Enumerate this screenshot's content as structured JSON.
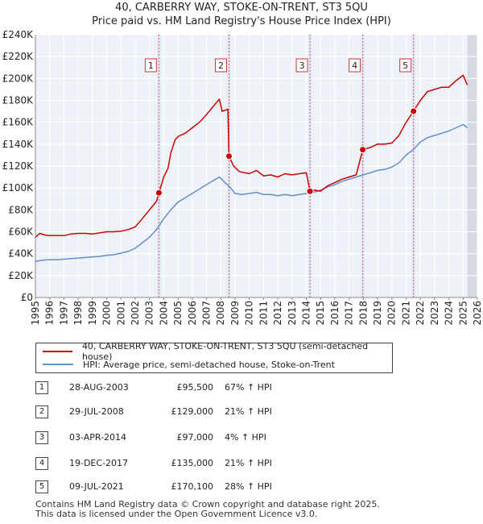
{
  "title_line1": "40, CARBERRY WAY, STOKE-ON-TRENT, ST3 5QU",
  "title_line2": "Price paid vs. HM Land Registry's House Price Index (HPI)",
  "chart_data": {
    "type": "line",
    "x_range": [
      1995,
      2026
    ],
    "ylim": [
      0,
      240000
    ],
    "y_ticks": [
      0,
      20000,
      40000,
      60000,
      80000,
      100000,
      120000,
      140000,
      160000,
      180000,
      200000,
      220000,
      240000
    ],
    "y_tick_labels": [
      "£0",
      "£20K",
      "£40K",
      "£60K",
      "£80K",
      "£100K",
      "£120K",
      "£140K",
      "£160K",
      "£180K",
      "£200K",
      "£220K",
      "£240K"
    ],
    "x_ticks": [
      1995,
      1996,
      1997,
      1998,
      1999,
      2000,
      2001,
      2002,
      2003,
      2004,
      2005,
      2006,
      2007,
      2008,
      2009,
      2010,
      2011,
      2012,
      2013,
      2014,
      2015,
      2016,
      2017,
      2018,
      2019,
      2020,
      2021,
      2022,
      2023,
      2024,
      2025,
      2026
    ],
    "shaded_end_from": 2025.3,
    "series": [
      {
        "name": "40, CARBERRY WAY, STOKE-ON-TRENT, ST3 5QU (semi-detached house)",
        "color": "#cc0000",
        "points": [
          [
            1995.0,
            55000
          ],
          [
            1995.3,
            58500
          ],
          [
            1995.7,
            57000
          ],
          [
            1996.0,
            56500
          ],
          [
            1996.5,
            56500
          ],
          [
            1997.0,
            56500
          ],
          [
            1997.5,
            58000
          ],
          [
            1998.0,
            58500
          ],
          [
            1998.5,
            58500
          ],
          [
            1999.0,
            58000
          ],
          [
            1999.5,
            59000
          ],
          [
            2000.0,
            60000
          ],
          [
            2000.5,
            60000
          ],
          [
            2001.0,
            60500
          ],
          [
            2001.5,
            62000
          ],
          [
            2002.0,
            64500
          ],
          [
            2002.5,
            72000
          ],
          [
            2003.0,
            80000
          ],
          [
            2003.5,
            88000
          ],
          [
            2003.66,
            95500
          ],
          [
            2004.0,
            110000
          ],
          [
            2004.3,
            118000
          ],
          [
            2004.5,
            132000
          ],
          [
            2004.8,
            144000
          ],
          [
            2005.0,
            147000
          ],
          [
            2005.5,
            150000
          ],
          [
            2006.0,
            155000
          ],
          [
            2006.5,
            160000
          ],
          [
            2007.0,
            167000
          ],
          [
            2007.5,
            175000
          ],
          [
            2007.9,
            181000
          ],
          [
            2008.1,
            170000
          ],
          [
            2008.5,
            172000
          ],
          [
            2008.58,
            129000
          ],
          [
            2008.9,
            120000
          ],
          [
            2009.3,
            115000
          ],
          [
            2010.0,
            113000
          ],
          [
            2010.5,
            116000
          ],
          [
            2011.0,
            111000
          ],
          [
            2011.5,
            112000
          ],
          [
            2012.0,
            110000
          ],
          [
            2012.5,
            113000
          ],
          [
            2013.0,
            112000
          ],
          [
            2013.5,
            113000
          ],
          [
            2014.0,
            114000
          ],
          [
            2014.26,
            97000
          ],
          [
            2014.6,
            98000
          ],
          [
            2015.0,
            97000
          ],
          [
            2015.5,
            102000
          ],
          [
            2016.0,
            105000
          ],
          [
            2016.5,
            108000
          ],
          [
            2017.0,
            110000
          ],
          [
            2017.5,
            112000
          ],
          [
            2017.96,
            135000
          ],
          [
            2018.5,
            137000
          ],
          [
            2019.0,
            140000
          ],
          [
            2019.5,
            140000
          ],
          [
            2020.0,
            141000
          ],
          [
            2020.5,
            148000
          ],
          [
            2021.0,
            160000
          ],
          [
            2021.52,
            170100
          ],
          [
            2022.0,
            180000
          ],
          [
            2022.5,
            188000
          ],
          [
            2023.0,
            190000
          ],
          [
            2023.5,
            192000
          ],
          [
            2024.0,
            192000
          ],
          [
            2024.5,
            198000
          ],
          [
            2025.0,
            203000
          ],
          [
            2025.3,
            194000
          ]
        ]
      },
      {
        "name": "HPI: Average price, semi-detached house, Stoke-on-Trent",
        "color": "#6090c8",
        "points": [
          [
            1995.0,
            33000
          ],
          [
            1995.5,
            34000
          ],
          [
            1996.0,
            34500
          ],
          [
            1996.5,
            34500
          ],
          [
            1997.0,
            35000
          ],
          [
            1997.5,
            35500
          ],
          [
            1998.0,
            36000
          ],
          [
            1998.5,
            36500
          ],
          [
            1999.0,
            37000
          ],
          [
            1999.5,
            37500
          ],
          [
            2000.0,
            38500
          ],
          [
            2000.5,
            39000
          ],
          [
            2001.0,
            40500
          ],
          [
            2001.5,
            42000
          ],
          [
            2002.0,
            45000
          ],
          [
            2002.5,
            50000
          ],
          [
            2003.0,
            55000
          ],
          [
            2003.5,
            62000
          ],
          [
            2004.0,
            72000
          ],
          [
            2004.5,
            80000
          ],
          [
            2005.0,
            87000
          ],
          [
            2005.5,
            91000
          ],
          [
            2006.0,
            95000
          ],
          [
            2006.5,
            99000
          ],
          [
            2007.0,
            103000
          ],
          [
            2007.5,
            107000
          ],
          [
            2007.9,
            110000
          ],
          [
            2008.3,
            105000
          ],
          [
            2008.7,
            100000
          ],
          [
            2009.0,
            95000
          ],
          [
            2009.5,
            94000
          ],
          [
            2010.0,
            95000
          ],
          [
            2010.5,
            96000
          ],
          [
            2011.0,
            94000
          ],
          [
            2011.5,
            94000
          ],
          [
            2012.0,
            93000
          ],
          [
            2012.5,
            94000
          ],
          [
            2013.0,
            93000
          ],
          [
            2013.5,
            94000
          ],
          [
            2014.0,
            95000
          ],
          [
            2014.5,
            96000
          ],
          [
            2015.0,
            98000
          ],
          [
            2015.5,
            101000
          ],
          [
            2016.0,
            103000
          ],
          [
            2016.5,
            106000
          ],
          [
            2017.0,
            108000
          ],
          [
            2017.5,
            110000
          ],
          [
            2018.0,
            112000
          ],
          [
            2018.5,
            114000
          ],
          [
            2019.0,
            116000
          ],
          [
            2019.5,
            117000
          ],
          [
            2020.0,
            119000
          ],
          [
            2020.5,
            123000
          ],
          [
            2021.0,
            130000
          ],
          [
            2021.5,
            135000
          ],
          [
            2022.0,
            142000
          ],
          [
            2022.5,
            146000
          ],
          [
            2023.0,
            148000
          ],
          [
            2023.5,
            150000
          ],
          [
            2024.0,
            152000
          ],
          [
            2024.5,
            155000
          ],
          [
            2025.0,
            158000
          ],
          [
            2025.3,
            155000
          ]
        ]
      }
    ],
    "sales": [
      {
        "num": "1",
        "x": 2003.66,
        "price": 95500
      },
      {
        "num": "2",
        "x": 2008.58,
        "price": 129000
      },
      {
        "num": "3",
        "x": 2014.26,
        "price": 97000
      },
      {
        "num": "4",
        "x": 2017.96,
        "price": 135000
      },
      {
        "num": "5",
        "x": 2021.52,
        "price": 170100
      }
    ]
  },
  "legend": {
    "red_label": "40, CARBERRY WAY, STOKE-ON-TRENT, ST3 5QU (semi-detached house)",
    "blue_label": "HPI: Average price, semi-detached house, Stoke-on-Trent",
    "red_color": "#cc0000",
    "blue_color": "#6090c8"
  },
  "sales_table": [
    {
      "num": "1",
      "date": "28-AUG-2003",
      "price": "£95,500",
      "hpi": "67% ↑ HPI"
    },
    {
      "num": "2",
      "date": "29-JUL-2008",
      "price": "£129,000",
      "hpi": "21% ↑ HPI"
    },
    {
      "num": "3",
      "date": "03-APR-2014",
      "price": "£97,000",
      "hpi": "4% ↑ HPI"
    },
    {
      "num": "4",
      "date": "19-DEC-2017",
      "price": "£135,000",
      "hpi": "21% ↑ HPI"
    },
    {
      "num": "5",
      "date": "09-JUL-2021",
      "price": "£170,100",
      "hpi": "28% ↑ HPI"
    }
  ],
  "footer_line1": "Contains HM Land Registry data © Crown copyright and database right 2025.",
  "footer_line2": "This data is licensed under the Open Government Licence v3.0."
}
